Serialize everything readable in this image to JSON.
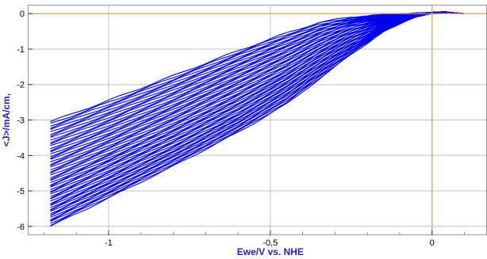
{
  "chart_data": {
    "type": "line",
    "xlabel": "Ewe/V vs. NHE",
    "ylabel": "<J>/mA/cm,",
    "xlim": [
      -1.25,
      0.17
    ],
    "ylim": [
      -6.25,
      0.25
    ],
    "xticks": [
      -1,
      -0.5,
      0
    ],
    "xtick_labels": [
      "-1",
      "-0,5",
      "0"
    ],
    "yticks": [
      0,
      -1,
      -2,
      -3,
      -4,
      -5,
      -6
    ],
    "ytick_labels": [
      "0",
      "-1",
      "-2",
      "-3",
      "-4",
      "-5",
      "-6"
    ],
    "grid": true,
    "reference_lines": {
      "x": 0,
      "y": 0,
      "color": "#e8a040"
    },
    "colors": {
      "series": "#0000ee",
      "axis_label": "#1f1fc8",
      "grid": "#c0c0c0",
      "frame": "#9a9a9a"
    },
    "sweep_count": 60,
    "series": [
      {
        "x": [
          -1.18,
          -1.0,
          -0.8,
          -0.6,
          -0.45,
          -0.35,
          -0.25,
          -0.15,
          -0.05,
          0.0,
          0.05
        ],
        "y": [
          -3.05,
          -2.45,
          -1.75,
          -1.05,
          -0.55,
          -0.25,
          -0.1,
          -0.03,
          0.0,
          0.01,
          0.03
        ]
      },
      {
        "x": [
          -1.18,
          -1.0,
          -0.8,
          -0.6,
          -0.45,
          -0.35,
          -0.25,
          -0.15,
          -0.05,
          0.0,
          0.05
        ],
        "y": [
          -3.9,
          -3.25,
          -2.5,
          -1.7,
          -1.1,
          -0.65,
          -0.3,
          -0.1,
          0.0,
          0.02,
          0.04
        ]
      },
      {
        "x": [
          -1.18,
          -1.0,
          -0.8,
          -0.6,
          -0.45,
          -0.35,
          -0.25,
          -0.15,
          -0.05,
          0.0,
          0.05
        ],
        "y": [
          -4.7,
          -4.0,
          -3.2,
          -2.35,
          -1.65,
          -1.1,
          -0.6,
          -0.22,
          -0.02,
          0.02,
          0.04
        ]
      },
      {
        "x": [
          -1.18,
          -1.0,
          -0.8,
          -0.6,
          -0.45,
          -0.35,
          -0.25,
          -0.15,
          -0.05,
          0.0,
          0.05
        ],
        "y": [
          -5.4,
          -4.65,
          -3.8,
          -2.9,
          -2.1,
          -1.5,
          -0.9,
          -0.38,
          -0.05,
          0.02,
          0.04
        ]
      },
      {
        "x": [
          -1.18,
          -1.0,
          -0.8,
          -0.6,
          -0.45,
          -0.35,
          -0.25,
          -0.15,
          -0.05,
          0.0,
          0.05
        ],
        "y": [
          -6.0,
          -5.2,
          -4.3,
          -3.35,
          -2.55,
          -1.85,
          -1.15,
          -0.5,
          -0.08,
          0.02,
          0.04
        ]
      }
    ]
  }
}
